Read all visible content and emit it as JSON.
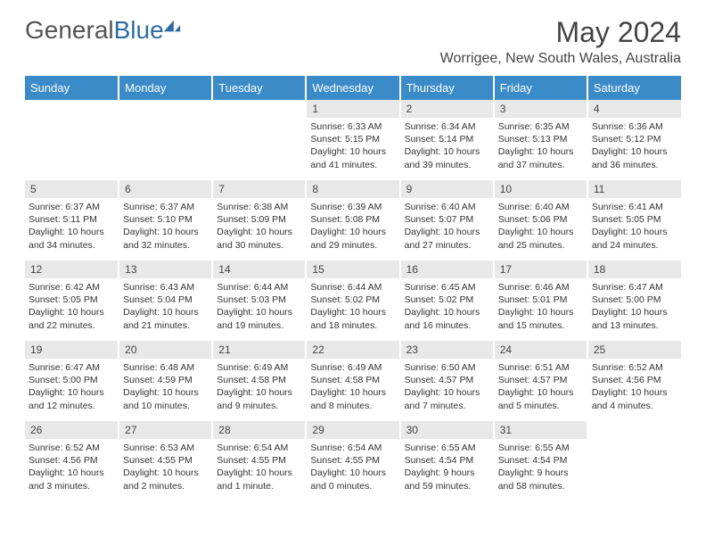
{
  "brand": {
    "name_a": "General",
    "name_b": "Blue"
  },
  "header": {
    "month_title": "May 2024",
    "location": "Worrigee, New South Wales, Australia"
  },
  "colors": {
    "header_bg": "#3b8bc9",
    "daynum_bg": "#e8e8e8",
    "brand_blue": "#2f6ca3"
  },
  "weekdays": [
    "Sunday",
    "Monday",
    "Tuesday",
    "Wednesday",
    "Thursday",
    "Friday",
    "Saturday"
  ],
  "weeks": [
    [
      null,
      null,
      null,
      {
        "n": "1",
        "sunrise": "6:33 AM",
        "sunset": "5:15 PM",
        "daylight": "10 hours and 41 minutes."
      },
      {
        "n": "2",
        "sunrise": "6:34 AM",
        "sunset": "5:14 PM",
        "daylight": "10 hours and 39 minutes."
      },
      {
        "n": "3",
        "sunrise": "6:35 AM",
        "sunset": "5:13 PM",
        "daylight": "10 hours and 37 minutes."
      },
      {
        "n": "4",
        "sunrise": "6:36 AM",
        "sunset": "5:12 PM",
        "daylight": "10 hours and 36 minutes."
      }
    ],
    [
      {
        "n": "5",
        "sunrise": "6:37 AM",
        "sunset": "5:11 PM",
        "daylight": "10 hours and 34 minutes."
      },
      {
        "n": "6",
        "sunrise": "6:37 AM",
        "sunset": "5:10 PM",
        "daylight": "10 hours and 32 minutes."
      },
      {
        "n": "7",
        "sunrise": "6:38 AM",
        "sunset": "5:09 PM",
        "daylight": "10 hours and 30 minutes."
      },
      {
        "n": "8",
        "sunrise": "6:39 AM",
        "sunset": "5:08 PM",
        "daylight": "10 hours and 29 minutes."
      },
      {
        "n": "9",
        "sunrise": "6:40 AM",
        "sunset": "5:07 PM",
        "daylight": "10 hours and 27 minutes."
      },
      {
        "n": "10",
        "sunrise": "6:40 AM",
        "sunset": "5:06 PM",
        "daylight": "10 hours and 25 minutes."
      },
      {
        "n": "11",
        "sunrise": "6:41 AM",
        "sunset": "5:05 PM",
        "daylight": "10 hours and 24 minutes."
      }
    ],
    [
      {
        "n": "12",
        "sunrise": "6:42 AM",
        "sunset": "5:05 PM",
        "daylight": "10 hours and 22 minutes."
      },
      {
        "n": "13",
        "sunrise": "6:43 AM",
        "sunset": "5:04 PM",
        "daylight": "10 hours and 21 minutes."
      },
      {
        "n": "14",
        "sunrise": "6:44 AM",
        "sunset": "5:03 PM",
        "daylight": "10 hours and 19 minutes."
      },
      {
        "n": "15",
        "sunrise": "6:44 AM",
        "sunset": "5:02 PM",
        "daylight": "10 hours and 18 minutes."
      },
      {
        "n": "16",
        "sunrise": "6:45 AM",
        "sunset": "5:02 PM",
        "daylight": "10 hours and 16 minutes."
      },
      {
        "n": "17",
        "sunrise": "6:46 AM",
        "sunset": "5:01 PM",
        "daylight": "10 hours and 15 minutes."
      },
      {
        "n": "18",
        "sunrise": "6:47 AM",
        "sunset": "5:00 PM",
        "daylight": "10 hours and 13 minutes."
      }
    ],
    [
      {
        "n": "19",
        "sunrise": "6:47 AM",
        "sunset": "5:00 PM",
        "daylight": "10 hours and 12 minutes."
      },
      {
        "n": "20",
        "sunrise": "6:48 AM",
        "sunset": "4:59 PM",
        "daylight": "10 hours and 10 minutes."
      },
      {
        "n": "21",
        "sunrise": "6:49 AM",
        "sunset": "4:58 PM",
        "daylight": "10 hours and 9 minutes."
      },
      {
        "n": "22",
        "sunrise": "6:49 AM",
        "sunset": "4:58 PM",
        "daylight": "10 hours and 8 minutes."
      },
      {
        "n": "23",
        "sunrise": "6:50 AM",
        "sunset": "4:57 PM",
        "daylight": "10 hours and 7 minutes."
      },
      {
        "n": "24",
        "sunrise": "6:51 AM",
        "sunset": "4:57 PM",
        "daylight": "10 hours and 5 minutes."
      },
      {
        "n": "25",
        "sunrise": "6:52 AM",
        "sunset": "4:56 PM",
        "daylight": "10 hours and 4 minutes."
      }
    ],
    [
      {
        "n": "26",
        "sunrise": "6:52 AM",
        "sunset": "4:56 PM",
        "daylight": "10 hours and 3 minutes."
      },
      {
        "n": "27",
        "sunrise": "6:53 AM",
        "sunset": "4:55 PM",
        "daylight": "10 hours and 2 minutes."
      },
      {
        "n": "28",
        "sunrise": "6:54 AM",
        "sunset": "4:55 PM",
        "daylight": "10 hours and 1 minute."
      },
      {
        "n": "29",
        "sunrise": "6:54 AM",
        "sunset": "4:55 PM",
        "daylight": "10 hours and 0 minutes."
      },
      {
        "n": "30",
        "sunrise": "6:55 AM",
        "sunset": "4:54 PM",
        "daylight": "9 hours and 59 minutes."
      },
      {
        "n": "31",
        "sunrise": "6:55 AM",
        "sunset": "4:54 PM",
        "daylight": "9 hours and 58 minutes."
      },
      null
    ]
  ],
  "labels": {
    "sunrise_prefix": "Sunrise: ",
    "sunset_prefix": "Sunset: ",
    "daylight_prefix": "Daylight: "
  }
}
